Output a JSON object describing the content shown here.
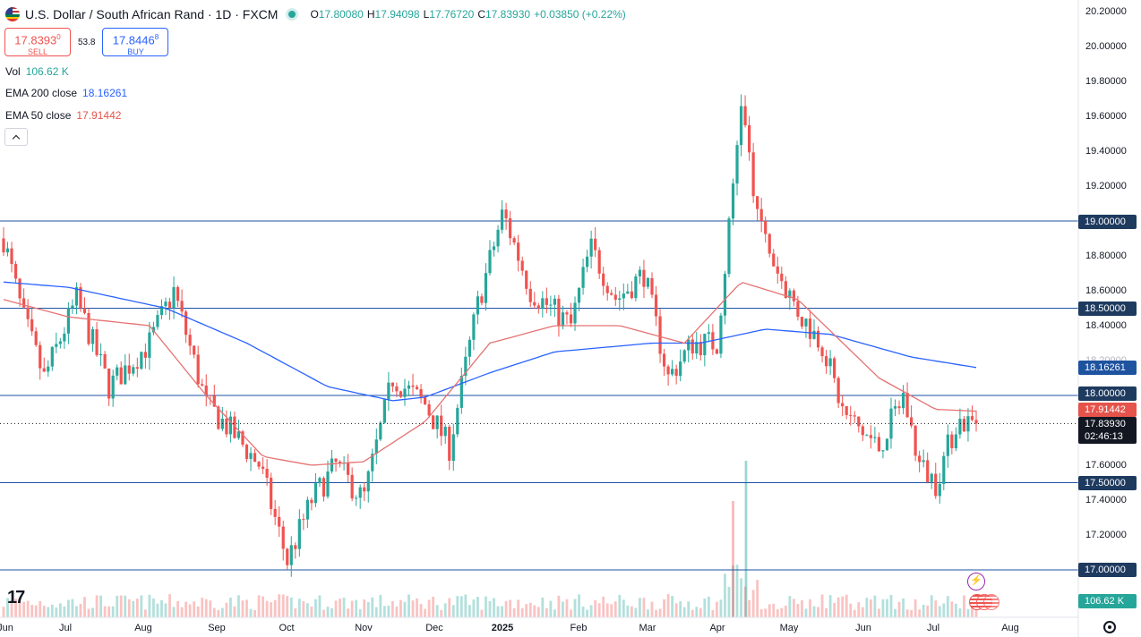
{
  "header": {
    "title": "U.S. Dollar / South African Rand · 1D · FXCM",
    "ohlc": {
      "o_label": "O",
      "o": "17.80080",
      "h_label": "H",
      "h": "17.94098",
      "l_label": "L",
      "l": "17.76720",
      "c_label": "C",
      "c": "17.83930",
      "change": "+0.03850 (+0.22%)"
    }
  },
  "trade": {
    "sell_price": "17.8393",
    "sell_sup": "0",
    "sell_label": "SELL",
    "spread": "53.8",
    "buy_price": "17.8446",
    "buy_sup": "8",
    "buy_label": "BUY"
  },
  "indicators": {
    "vol_name": "Vol",
    "vol_value": "106.62 K",
    "ema200_name": "EMA 200 close",
    "ema200_value": "18.16261",
    "ema50_name": "EMA 50 close",
    "ema50_value": "17.91442"
  },
  "colors": {
    "up": "#26a69a",
    "down": "#ef5350",
    "ema200": "#2962ff",
    "ema50": "#e57373",
    "hline": "#1e53a0"
  },
  "icons": [
    "flag-icon",
    "live-dot-icon",
    "chevron-up-icon",
    "tradingview-logo-icon",
    "lightning-icon",
    "us-flag-icon",
    "settings-icon"
  ],
  "y_axis": {
    "ticks": [
      "20.20000",
      "20.00000",
      "19.80000",
      "19.60000",
      "19.40000",
      "19.20000",
      "18.80000",
      "18.60000",
      "18.40000",
      "17.60000",
      "17.40000",
      "17.20000"
    ],
    "tick_values": [
      20.2,
      20.0,
      19.8,
      19.6,
      19.4,
      19.2,
      18.8,
      18.6,
      18.4,
      17.6,
      17.4,
      17.2
    ],
    "faded_tick": "18.20000",
    "level_tags": [
      "19.00000",
      "18.50000",
      "18.00000",
      "17.50000",
      "17.00000"
    ],
    "level_values": [
      19.0,
      18.5,
      18.0,
      17.5,
      17.0
    ],
    "ema200_tag": "18.16261",
    "ema50_tag": "17.91442",
    "price_tag": "17.83930",
    "countdown": "02:46:13",
    "volume_tag": "106.62 K"
  },
  "x_axis": {
    "months": [
      "Jun",
      "Jul",
      "Aug",
      "Sep",
      "Oct",
      "Nov",
      "Dec",
      "2025",
      "Feb",
      "Mar",
      "Apr",
      "May",
      "Jun",
      "Jul",
      "Aug"
    ]
  },
  "chart_data": {
    "type": "candlestick",
    "symbol": "USD/ZAR",
    "interval": "1D",
    "ylim": [
      17.0,
      20.2
    ],
    "horizontal_levels": [
      19.0,
      18.5,
      18.0,
      17.5,
      17.0
    ],
    "last_price": 17.8393,
    "ema200_last": 18.16261,
    "ema50_last": 17.91442,
    "volume_last": "106.62 K",
    "path_anchors": [
      {
        "t": 0,
        "v": 18.9
      },
      {
        "t": 12,
        "v": 18.45
      },
      {
        "t": 25,
        "v": 18.1
      },
      {
        "t": 45,
        "v": 18.55
      },
      {
        "t": 65,
        "v": 18.05
      },
      {
        "t": 90,
        "v": 18.3
      },
      {
        "t": 105,
        "v": 18.6
      },
      {
        "t": 125,
        "v": 17.95
      },
      {
        "t": 140,
        "v": 17.8
      },
      {
        "t": 158,
        "v": 17.6
      },
      {
        "t": 175,
        "v": 17.05
      },
      {
        "t": 190,
        "v": 17.4
      },
      {
        "t": 205,
        "v": 17.6
      },
      {
        "t": 222,
        "v": 17.4
      },
      {
        "t": 240,
        "v": 18.1
      },
      {
        "t": 260,
        "v": 17.95
      },
      {
        "t": 275,
        "v": 17.7
      },
      {
        "t": 292,
        "v": 18.5
      },
      {
        "t": 308,
        "v": 19.05
      },
      {
        "t": 325,
        "v": 18.6
      },
      {
        "t": 350,
        "v": 18.4
      },
      {
        "t": 362,
        "v": 18.85
      },
      {
        "t": 378,
        "v": 18.55
      },
      {
        "t": 395,
        "v": 18.7
      },
      {
        "t": 410,
        "v": 18.1
      },
      {
        "t": 425,
        "v": 18.3
      },
      {
        "t": 440,
        "v": 18.3
      },
      {
        "t": 448,
        "v": 19.0
      },
      {
        "t": 455,
        "v": 19.7
      },
      {
        "t": 465,
        "v": 19.0
      },
      {
        "t": 478,
        "v": 18.7
      },
      {
        "t": 492,
        "v": 18.45
      },
      {
        "t": 505,
        "v": 18.3
      },
      {
        "t": 518,
        "v": 17.9
      },
      {
        "t": 540,
        "v": 17.7
      },
      {
        "t": 555,
        "v": 18.0
      },
      {
        "t": 565,
        "v": 17.6
      },
      {
        "t": 575,
        "v": 17.5
      },
      {
        "t": 588,
        "v": 17.85
      },
      {
        "t": 600,
        "v": 17.84
      }
    ],
    "ema200_anchors": [
      {
        "t": 0,
        "v": 18.65
      },
      {
        "t": 40,
        "v": 18.62
      },
      {
        "t": 100,
        "v": 18.5
      },
      {
        "t": 150,
        "v": 18.3
      },
      {
        "t": 200,
        "v": 18.05
      },
      {
        "t": 240,
        "v": 17.97
      },
      {
        "t": 260,
        "v": 17.99
      },
      {
        "t": 300,
        "v": 18.13
      },
      {
        "t": 340,
        "v": 18.25
      },
      {
        "t": 400,
        "v": 18.3
      },
      {
        "t": 430,
        "v": 18.3
      },
      {
        "t": 470,
        "v": 18.38
      },
      {
        "t": 510,
        "v": 18.35
      },
      {
        "t": 560,
        "v": 18.22
      },
      {
        "t": 600,
        "v": 18.16
      }
    ],
    "ema50_anchors": [
      {
        "t": 0,
        "v": 18.55
      },
      {
        "t": 40,
        "v": 18.45
      },
      {
        "t": 90,
        "v": 18.4
      },
      {
        "t": 125,
        "v": 18.0
      },
      {
        "t": 160,
        "v": 17.65
      },
      {
        "t": 190,
        "v": 17.6
      },
      {
        "t": 222,
        "v": 17.62
      },
      {
        "t": 260,
        "v": 17.85
      },
      {
        "t": 300,
        "v": 18.3
      },
      {
        "t": 340,
        "v": 18.4
      },
      {
        "t": 380,
        "v": 18.4
      },
      {
        "t": 420,
        "v": 18.3
      },
      {
        "t": 455,
        "v": 18.65
      },
      {
        "t": 490,
        "v": 18.55
      },
      {
        "t": 540,
        "v": 18.1
      },
      {
        "t": 575,
        "v": 17.92
      },
      {
        "t": 600,
        "v": 17.91
      }
    ]
  }
}
